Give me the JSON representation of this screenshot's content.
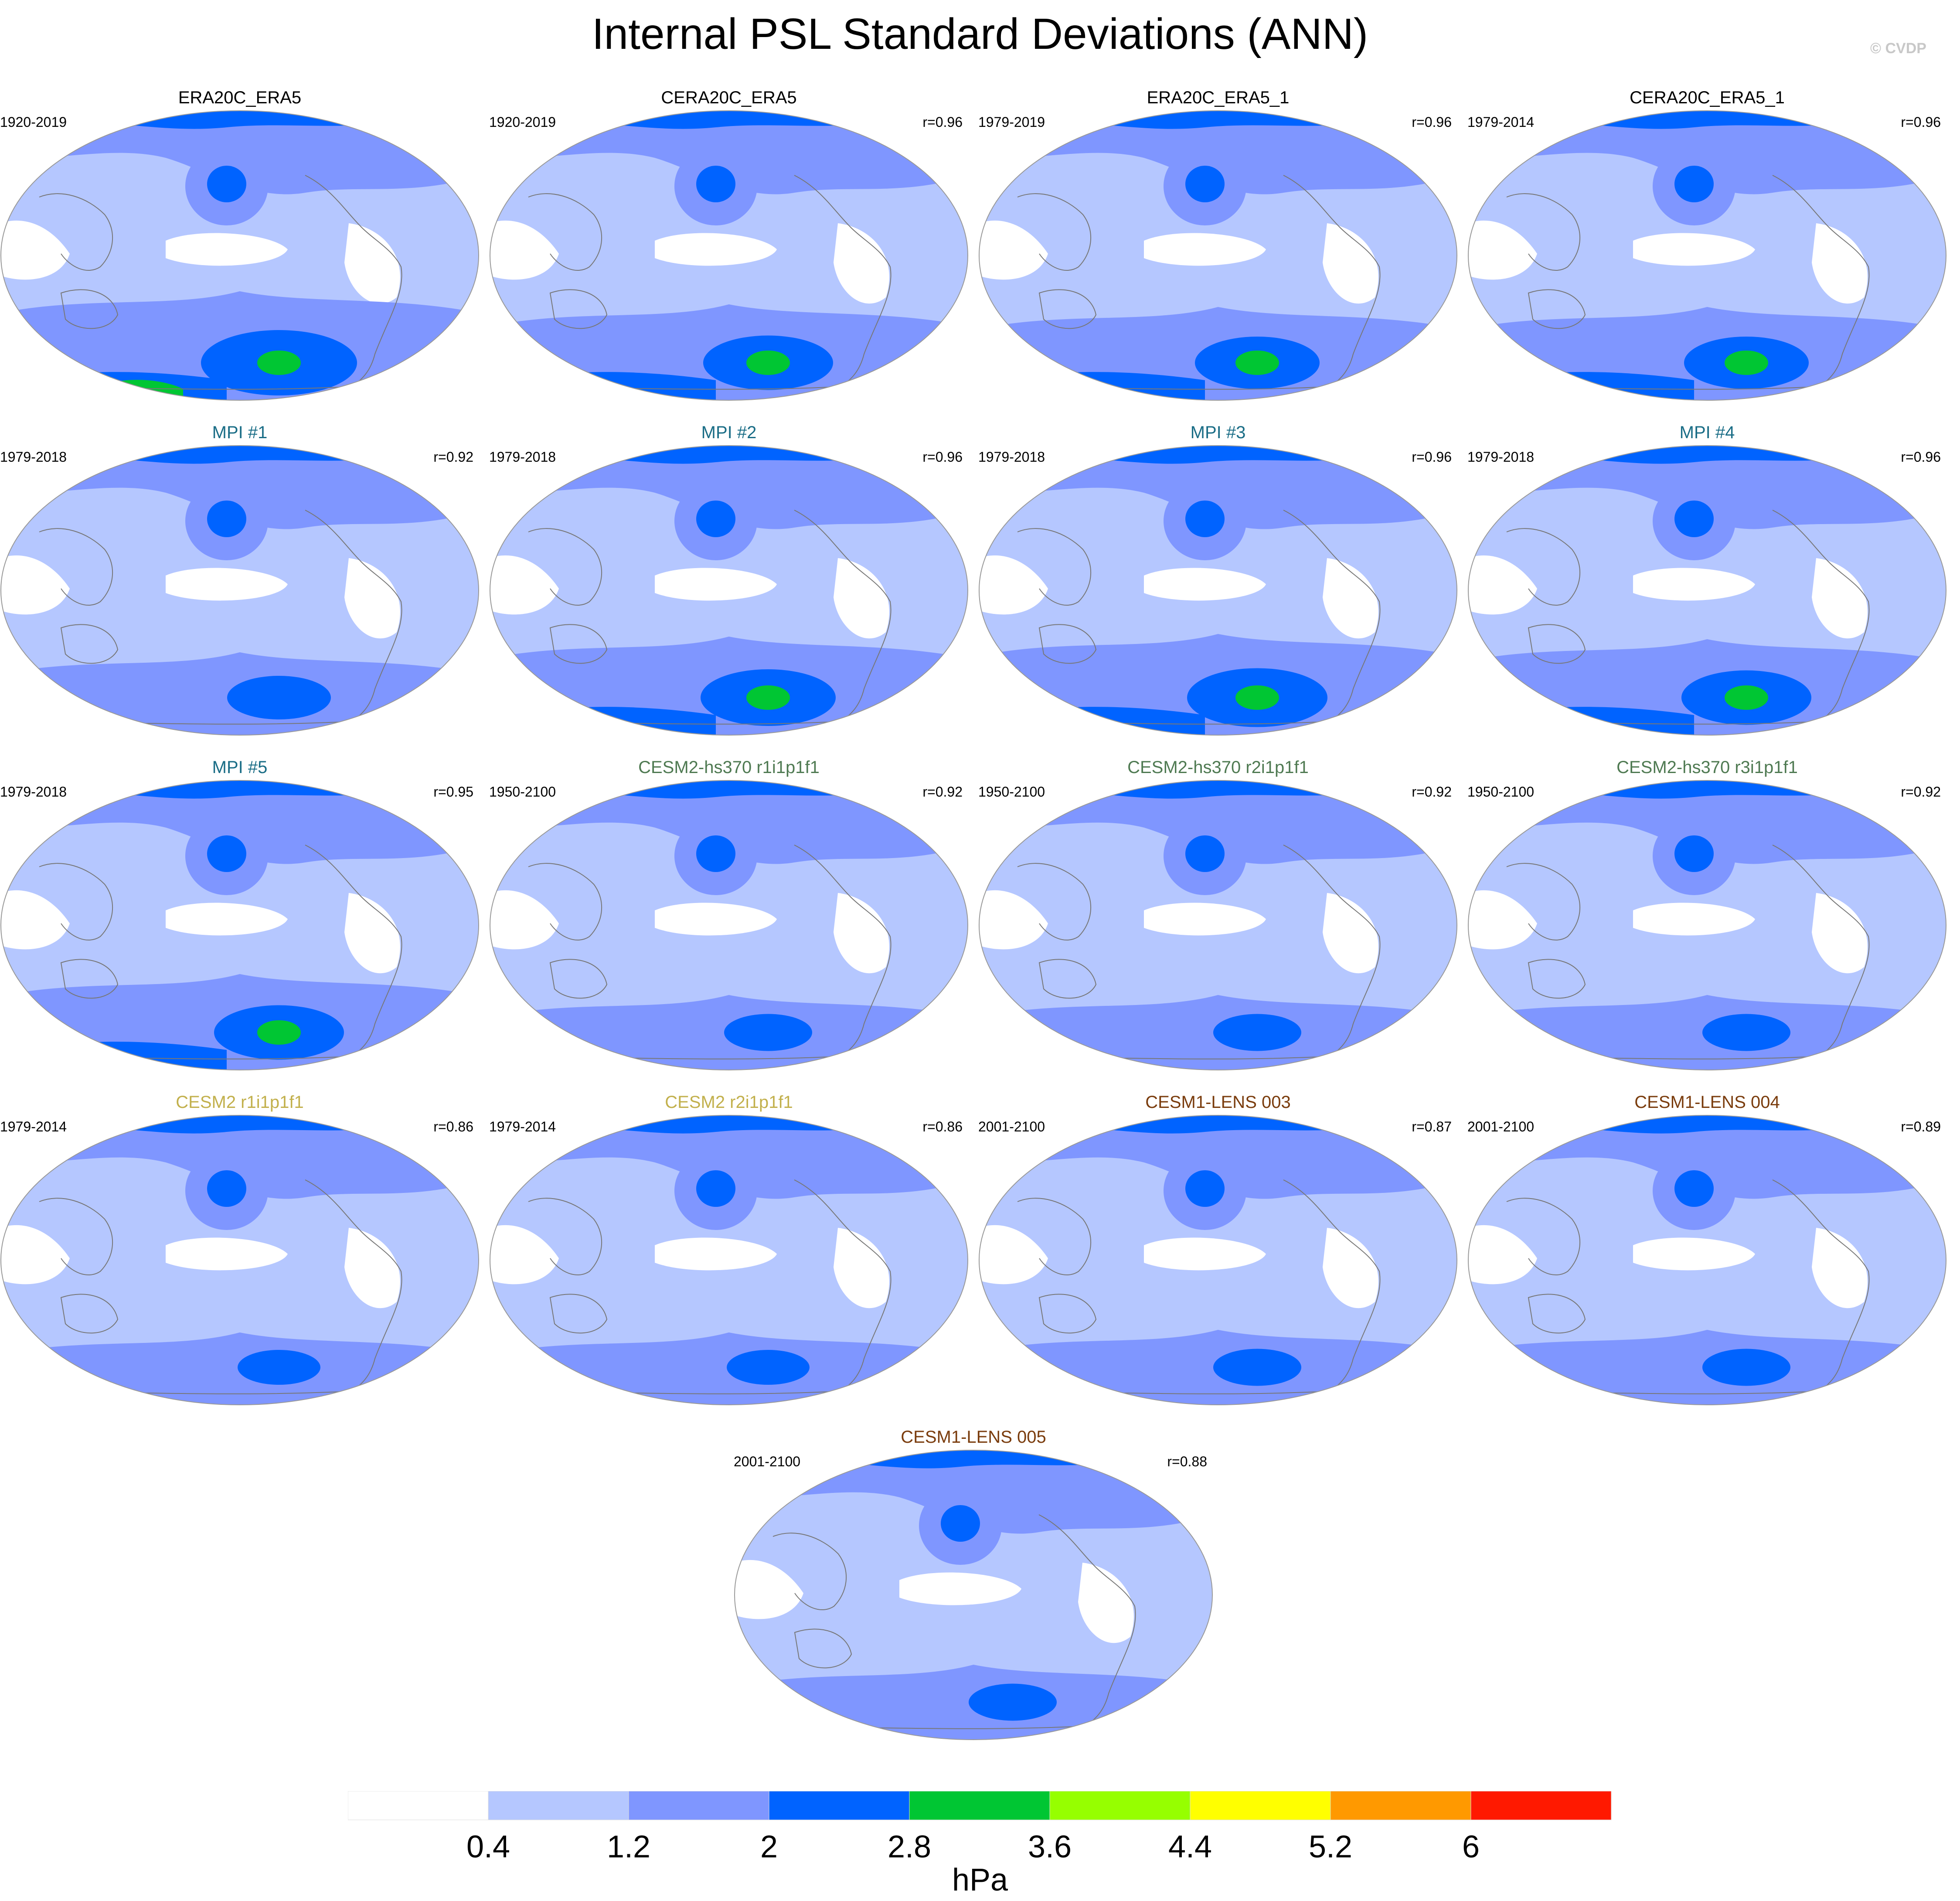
{
  "title": "Internal PSL Standard Deviations (ANN)",
  "watermark": "© CVDP",
  "panels": [
    {
      "title": "ERA20C_ERA5",
      "period": "1920-2019",
      "r": "",
      "title_color": "#000000",
      "level": 3.2
    },
    {
      "title": "CERA20C_ERA5",
      "period": "1920-2019",
      "r": "r=0.96",
      "title_color": "#000000",
      "level": 2.7
    },
    {
      "title": "ERA20C_ERA5_1",
      "period": "1979-2019",
      "r": "r=0.96",
      "title_color": "#000000",
      "level": 2.6
    },
    {
      "title": "CERA20C_ERA5_1",
      "period": "1979-2014",
      "r": "r=0.96",
      "title_color": "#000000",
      "level": 2.6
    },
    {
      "title": "MPI #1",
      "period": "1979-2018",
      "r": "r=0.92",
      "title_color": "#1a6d86",
      "level": 2.2
    },
    {
      "title": "MPI #2",
      "period": "1979-2018",
      "r": "r=0.96",
      "title_color": "#1a6d86",
      "level": 2.8
    },
    {
      "title": "MPI #3",
      "period": "1979-2018",
      "r": "r=0.96",
      "title_color": "#1a6d86",
      "level": 2.9
    },
    {
      "title": "MPI #4",
      "period": "1979-2018",
      "r": "r=0.96",
      "title_color": "#1a6d86",
      "level": 2.7
    },
    {
      "title": "MPI #5",
      "period": "1979-2018",
      "r": "r=0.95",
      "title_color": "#1a6d86",
      "level": 2.7
    },
    {
      "title": "CESM2-hs370 r1i1p1f1",
      "period": "1950-2100",
      "r": "r=0.92",
      "title_color": "#4f7a52",
      "level": 1.9
    },
    {
      "title": "CESM2-hs370 r2i1p1f1",
      "period": "1950-2100",
      "r": "r=0.92",
      "title_color": "#4f7a52",
      "level": 1.9
    },
    {
      "title": "CESM2-hs370 r3i1p1f1",
      "period": "1950-2100",
      "r": "r=0.92",
      "title_color": "#4f7a52",
      "level": 1.9
    },
    {
      "title": "CESM2 r1i1p1f1",
      "period": "1979-2014",
      "r": "r=0.86",
      "title_color": "#c2b04c",
      "level": 1.8
    },
    {
      "title": "CESM2 r2i1p1f1",
      "period": "1979-2014",
      "r": "r=0.86",
      "title_color": "#c2b04c",
      "level": 1.8
    },
    {
      "title": "CESM1-LENS 003",
      "period": "2001-2100",
      "r": "r=0.87",
      "title_color": "#7a3c0d",
      "level": 1.9
    },
    {
      "title": "CESM1-LENS 004",
      "period": "2001-2100",
      "r": "r=0.89",
      "title_color": "#7a3c0d",
      "level": 1.9
    },
    {
      "title": "CESM1-LENS 005",
      "period": "2001-2100",
      "r": "r=0.88",
      "title_color": "#7a3c0d",
      "level": 1.9
    }
  ],
  "colorbar": {
    "colors": [
      "#ffffff",
      "#b5c7ff",
      "#7f96ff",
      "#0063ff",
      "#00c633",
      "#96ff00",
      "#ffff00",
      "#ff9900",
      "#ff1900"
    ],
    "labels": [
      "0.4",
      "1.2",
      "2",
      "2.8",
      "3.6",
      "4.4",
      "5.2",
      "6"
    ],
    "unit": "hPa"
  }
}
